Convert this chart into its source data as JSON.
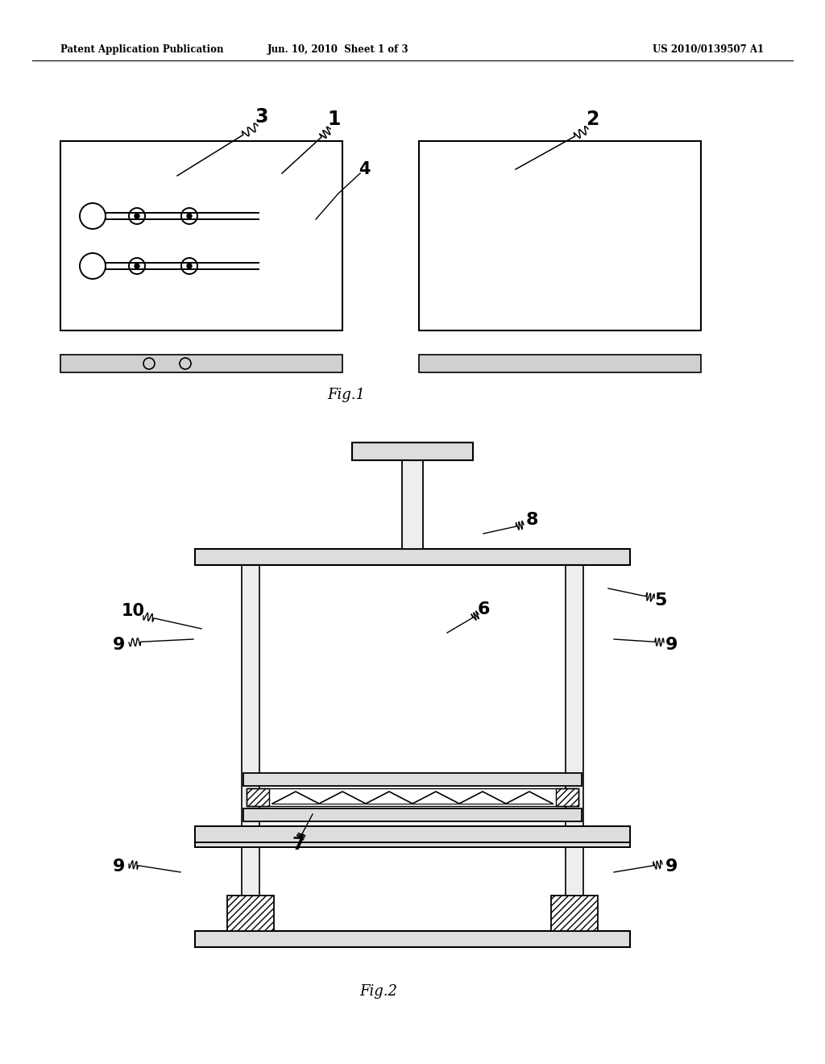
{
  "bg_color": "#ffffff",
  "header_text1": "Patent Application Publication",
  "header_text2": "Jun. 10, 2010  Sheet 1 of 3",
  "header_text3": "US 2010/0139507 A1",
  "fig1_label": "Fig.1",
  "fig2_label": "Fig.2"
}
